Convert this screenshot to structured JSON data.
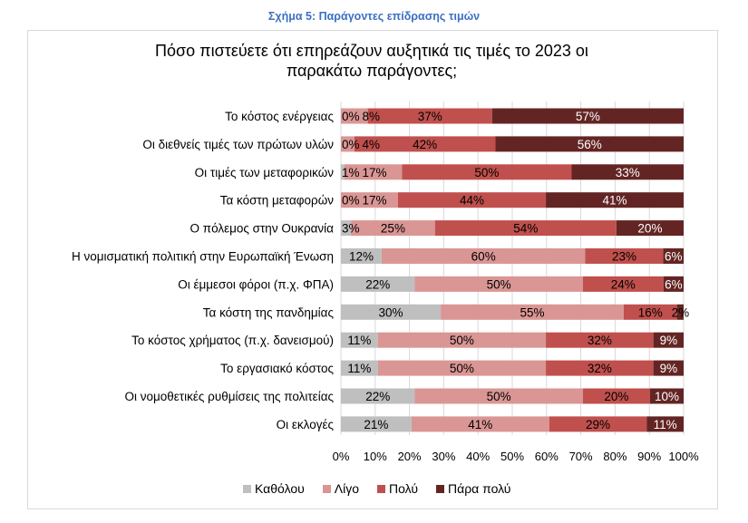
{
  "caption": "Σχήμα 5: Παράγοντες επίδρασης τιμών",
  "chart_data": {
    "type": "bar",
    "orientation": "horizontal-stacked-100",
    "title": "Πόσο πιστεύετε ότι επηρεάζουν αυξητικά τις τιμές το 2023 οι παρακάτω παράγοντες;",
    "categories": [
      "Το κόστος ενέργειας",
      "Οι διεθνείς τιμές των πρώτων υλών",
      "Οι τιμές των μεταφορικών",
      "Τα κόστη μεταφορών",
      "Ο πόλεμος στην Ουκρανία",
      "Η νομισματική πολιτική στην Ευρωπαϊκή Ένωση",
      "Οι έμμεσοι φόροι (π.χ. ΦΠΑ)",
      "Τα κόστη της πανδημίας",
      "Το κόστος χρήματος (π.χ. δανεισμού)",
      "Το εργασιακό κόστος",
      "Οι νομοθετικές ρυθμίσεις της πολιτείας",
      "Οι εκλογές"
    ],
    "series": [
      {
        "name": "Καθόλου",
        "color": "#bfbfbf",
        "values": [
          0,
          0,
          1,
          0,
          3,
          12,
          22,
          30,
          11,
          11,
          22,
          21
        ]
      },
      {
        "name": "Λίγο",
        "color": "#da9694",
        "values": [
          8,
          4,
          17,
          17,
          25,
          60,
          50,
          55,
          50,
          50,
          50,
          41
        ]
      },
      {
        "name": "Πολύ",
        "color": "#c0504d",
        "values": [
          37,
          42,
          50,
          44,
          54,
          23,
          24,
          16,
          32,
          32,
          20,
          29
        ]
      },
      {
        "name": "Πάρα πολύ",
        "color": "#632523",
        "values": [
          57,
          56,
          33,
          41,
          20,
          6,
          6,
          2,
          9,
          9,
          10,
          11
        ]
      }
    ],
    "xticks": [
      "0%",
      "10%",
      "20%",
      "30%",
      "40%",
      "50%",
      "60%",
      "70%",
      "80%",
      "90%",
      "100%"
    ],
    "xlim": [
      0,
      100
    ],
    "grid": true,
    "legend": "bottom"
  }
}
